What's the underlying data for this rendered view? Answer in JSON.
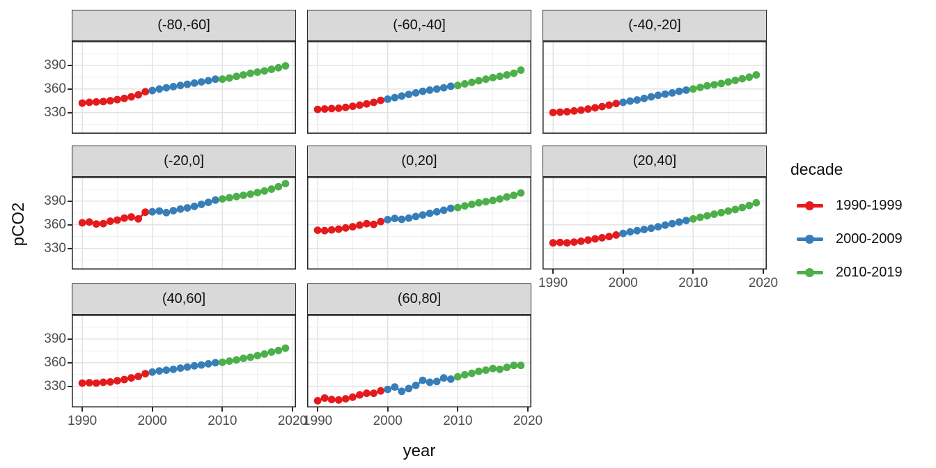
{
  "chart_data": {
    "type": "line",
    "title": "",
    "xlabel": "year",
    "ylabel": "pCO2",
    "x": [
      1990,
      1991,
      1992,
      1993,
      1994,
      1995,
      1996,
      1997,
      1998,
      1999,
      2000,
      2001,
      2002,
      2003,
      2004,
      2005,
      2006,
      2007,
      2008,
      2009,
      2010,
      2011,
      2012,
      2013,
      2014,
      2015,
      2016,
      2017,
      2018,
      2019
    ],
    "axis": {
      "x_ticks": [
        1990,
        2000,
        2010,
        2020
      ],
      "y_ticks": [
        390,
        360,
        330
      ],
      "x_minor_ticks": [
        1995,
        2005,
        2015
      ],
      "y_minor_ticks": [
        315,
        345,
        375,
        405
      ],
      "xlim": [
        1988.5,
        2020.5
      ],
      "ylim": [
        303,
        421
      ],
      "grid": true
    },
    "legend": {
      "title": "decade",
      "position": "right",
      "entries": [
        {
          "label": "1990-1999",
          "color": "#E41A1C",
          "year_range": [
            1990,
            1999
          ]
        },
        {
          "label": "2000-2009",
          "color": "#377EB8",
          "year_range": [
            2000,
            2009
          ]
        },
        {
          "label": "2010-2019",
          "color": "#4DAF4A",
          "year_range": [
            2010,
            2019
          ]
        }
      ]
    },
    "facets": [
      {
        "label": "(-80,-60]",
        "values": [
          342,
          343,
          343.5,
          344,
          345,
          346.5,
          348,
          350,
          352.5,
          356.5,
          358,
          360,
          361.5,
          363,
          364.5,
          366,
          367.5,
          369,
          370.5,
          372.5,
          372.5,
          374,
          376,
          378,
          380,
          381.5,
          383,
          385,
          387,
          389.5
        ]
      },
      {
        "label": "(-60,-40]",
        "values": [
          334,
          334.5,
          335,
          335.5,
          336.5,
          338,
          339.5,
          341,
          343,
          345.5,
          347,
          349,
          351,
          353,
          355,
          357,
          358.5,
          360,
          361.5,
          363.5,
          364.5,
          366.5,
          368.5,
          370.5,
          372.5,
          374.5,
          376,
          378,
          380,
          384
        ]
      },
      {
        "label": "(-40,-20]",
        "values": [
          330,
          330.5,
          331,
          332,
          333,
          334.5,
          336,
          337.5,
          339.5,
          341.5,
          343,
          344.5,
          346,
          348,
          350,
          352,
          353.5,
          355,
          357,
          358.5,
          360,
          362,
          364,
          365.5,
          367,
          369,
          371,
          373,
          375,
          378
        ]
      },
      {
        "label": "(-20,0]",
        "values": [
          362.5,
          363.5,
          361,
          361.5,
          364.5,
          366,
          368.5,
          370,
          367.5,
          376,
          376.5,
          377.5,
          375.5,
          378,
          380,
          381.5,
          383.5,
          386,
          388.5,
          391.5,
          393,
          394.5,
          396,
          397.5,
          399,
          401,
          403,
          405.5,
          408.5,
          412.5
        ]
      },
      {
        "label": "(0,20]",
        "values": [
          353,
          352.5,
          353.5,
          354.5,
          356,
          357.5,
          359.5,
          361.5,
          360.5,
          364,
          366.5,
          368,
          367,
          368.5,
          370.5,
          372.5,
          374.5,
          376.5,
          378.5,
          381,
          382,
          384,
          386,
          388,
          389.5,
          391,
          393,
          395.5,
          397.5,
          400.5
        ]
      },
      {
        "label": "(20,40]",
        "values": [
          337,
          337.5,
          337,
          338,
          339,
          340.5,
          342,
          343.5,
          345,
          347,
          349,
          351,
          352.5,
          354,
          355.5,
          357.5,
          359.5,
          361.5,
          363.5,
          365.5,
          367.5,
          369.5,
          371.5,
          373.5,
          375.5,
          377.5,
          379.5,
          382,
          384.5,
          388
        ]
      },
      {
        "label": "(40,60]",
        "values": [
          334,
          334.5,
          334,
          335,
          335.5,
          337,
          338.5,
          340.5,
          342.5,
          346,
          348,
          349.5,
          350.5,
          351.5,
          353,
          354.5,
          356,
          357,
          358.5,
          360,
          360.5,
          362,
          363.5,
          365.5,
          367,
          369,
          371,
          373.5,
          375.5,
          378.5
        ]
      },
      {
        "label": "(60,80]",
        "values": [
          311.5,
          315,
          313,
          312.5,
          314,
          316,
          319,
          321,
          321,
          324,
          326,
          329,
          323.5,
          327,
          331,
          337.5,
          335,
          336,
          340.5,
          339,
          342,
          344.5,
          346.5,
          349,
          350.5,
          352.5,
          351.5,
          354,
          356.5,
          356.5
        ]
      }
    ]
  },
  "colors": {
    "decade_1990": "#E41A1C",
    "decade_2000": "#377EB8",
    "decade_2010": "#4DAF4A",
    "strip_background": "#D9D9D9",
    "panel_border": "#2b2b2b",
    "grid_major": "#E3E3E3",
    "grid_minor": "#F1F1F1",
    "tick_text": "#4d4d4d"
  }
}
